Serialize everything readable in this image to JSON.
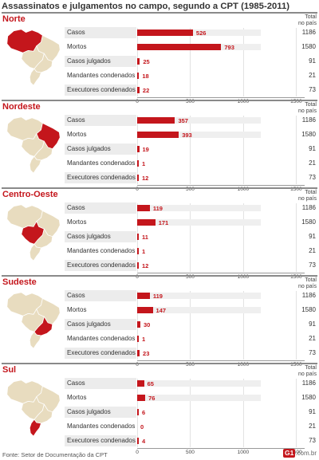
{
  "title": "Assassinatos e julgamentos no campo, segundo a CPT (1985-2011)",
  "total_header": [
    "Total",
    "no país"
  ],
  "source": "Fonte: Setor de Documentação da CPT",
  "logo": {
    "mark": "G1",
    "domain": ".com.br"
  },
  "colors": {
    "accent": "#c4161c",
    "track": "#efefef",
    "map_base": "#e8dcbf"
  },
  "chart_data": [
    {
      "type": "bar",
      "title": "Norte",
      "highlight_region": "norte",
      "categories": [
        "Casos",
        "Mortos",
        "Casos julgados",
        "Mandantes condenados",
        "Executores condenados"
      ],
      "values": [
        526,
        793,
        25,
        18,
        22
      ],
      "totals": [
        1186,
        1580,
        91,
        21,
        73
      ],
      "xlim": [
        0,
        1580
      ],
      "xticks": [
        "0",
        "500",
        "1000",
        "1500"
      ]
    },
    {
      "type": "bar",
      "title": "Nordeste",
      "highlight_region": "nordeste",
      "categories": [
        "Casos",
        "Mortos",
        "Casos julgados",
        "Mandantes condenados",
        "Executores condenados"
      ],
      "values": [
        357,
        393,
        19,
        1,
        12
      ],
      "totals": [
        1186,
        1580,
        91,
        21,
        73
      ],
      "xlim": [
        0,
        1580
      ],
      "xticks": [
        "0",
        "500",
        "1000",
        "1500"
      ]
    },
    {
      "type": "bar",
      "title": "Centro-Oeste",
      "highlight_region": "centro-oeste",
      "categories": [
        "Casos",
        "Mortos",
        "Casos julgados",
        "Mandantes condenados",
        "Executores condenados"
      ],
      "values": [
        119,
        171,
        11,
        1,
        12
      ],
      "totals": [
        1186,
        1580,
        91,
        21,
        73
      ],
      "xlim": [
        0,
        1580
      ],
      "xticks": [
        "0",
        "500",
        "1000",
        "1500"
      ]
    },
    {
      "type": "bar",
      "title": "Sudeste",
      "highlight_region": "sudeste",
      "categories": [
        "Casos",
        "Mortos",
        "Casos julgados",
        "Mandantes condenados",
        "Executores condenados"
      ],
      "values": [
        119,
        147,
        30,
        1,
        23
      ],
      "totals": [
        1186,
        1580,
        91,
        21,
        73
      ],
      "xlim": [
        0,
        1580
      ],
      "xticks": [
        "0",
        "500",
        "1000",
        "1500"
      ]
    },
    {
      "type": "bar",
      "title": "Sul",
      "highlight_region": "sul",
      "categories": [
        "Casos",
        "Mortos",
        "Casos julgados",
        "Mandantes condenados",
        "Executores condenados"
      ],
      "values": [
        65,
        76,
        6,
        0,
        4
      ],
      "totals": [
        1186,
        1580,
        91,
        21,
        73
      ],
      "xlim": [
        0,
        1580
      ],
      "xticks": [
        "0",
        "500",
        "1000",
        "1500"
      ]
    }
  ]
}
